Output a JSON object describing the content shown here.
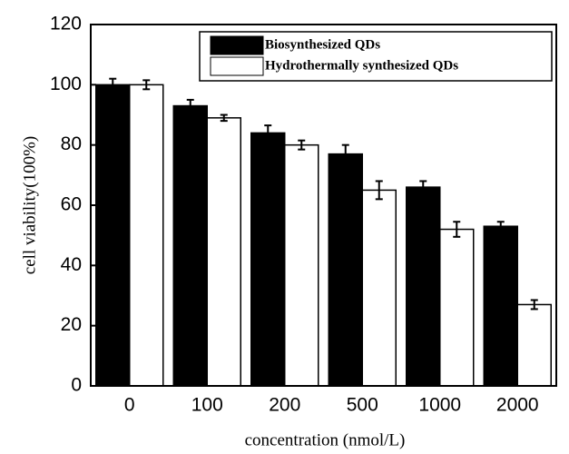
{
  "chart_data": {
    "type": "bar",
    "x_label": "concentration (nmol/L)",
    "y_label": "cell viability(100%)",
    "categories": [
      "0",
      "100",
      "200",
      "500",
      "1000",
      "2000"
    ],
    "series": [
      {
        "name": "Biosynthesized QDs",
        "color": "#000000",
        "values": [
          100,
          93,
          84,
          77,
          66,
          53
        ],
        "errors": [
          2,
          2,
          2.5,
          3,
          2,
          1.5
        ]
      },
      {
        "name": "Hydrothermally synthesized QDs",
        "color": "#ffffff",
        "values": [
          100,
          89,
          80,
          65,
          52,
          27
        ],
        "errors": [
          1.5,
          1,
          1.5,
          3,
          2.5,
          1.5
        ]
      }
    ],
    "ylim": [
      0,
      120
    ],
    "yticks": [
      0,
      20,
      40,
      60,
      80,
      100,
      120
    ],
    "legend": "upper-right",
    "grid": false
  }
}
